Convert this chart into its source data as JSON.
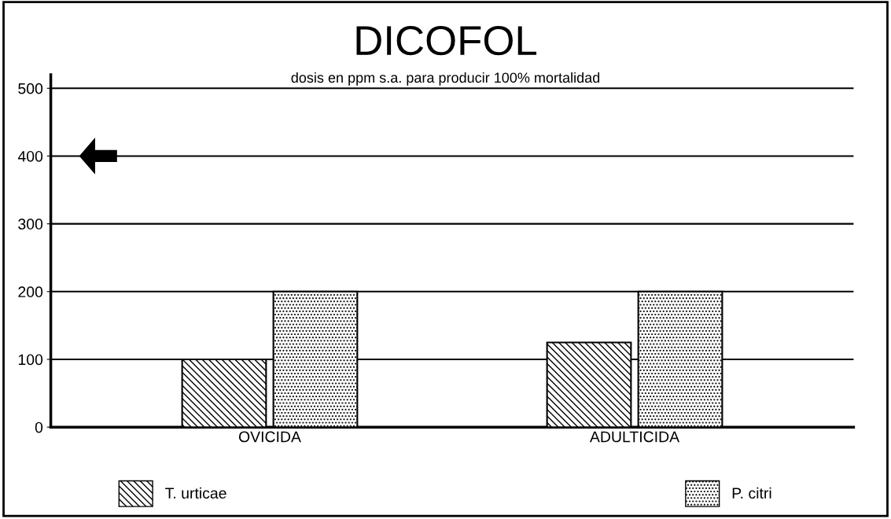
{
  "chart_data": {
    "type": "bar",
    "title": "DICOFOL",
    "subtitle": "dosis en ppm s.a. para producir 100% mortalidad",
    "categories": [
      "OVICIDA",
      "ADULTICIDA"
    ],
    "series": [
      {
        "name": "T. urticae",
        "color": "#000000",
        "values": [
          100,
          125
        ]
      },
      {
        "name": "P. citri",
        "color": "#000000",
        "values": [
          200,
          200
        ]
      }
    ],
    "ylim": [
      0,
      520
    ],
    "yticks": [
      0,
      100,
      200,
      300,
      400,
      500
    ],
    "grid": "y",
    "legend": "bottom"
  }
}
